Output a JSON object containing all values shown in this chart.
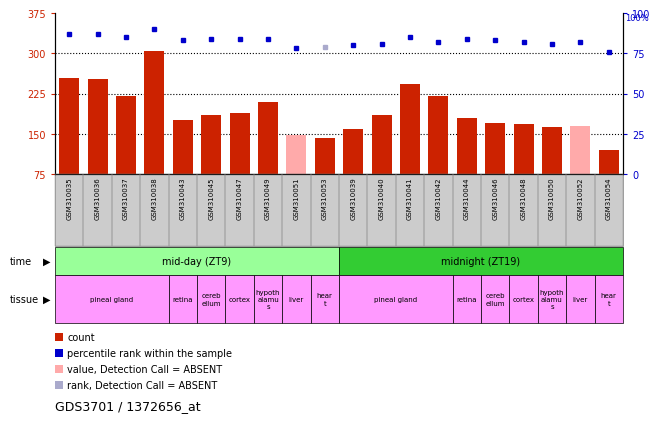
{
  "title": "GDS3701 / 1372656_at",
  "samples": [
    "GSM310035",
    "GSM310036",
    "GSM310037",
    "GSM310038",
    "GSM310043",
    "GSM310045",
    "GSM310047",
    "GSM310049",
    "GSM310051",
    "GSM310053",
    "GSM310039",
    "GSM310040",
    "GSM310041",
    "GSM310042",
    "GSM310044",
    "GSM310046",
    "GSM310048",
    "GSM310050",
    "GSM310052",
    "GSM310054"
  ],
  "count_values": [
    253,
    252,
    220,
    305,
    175,
    185,
    188,
    210,
    148,
    143,
    158,
    185,
    243,
    220,
    180,
    170,
    168,
    163,
    165,
    120
  ],
  "count_absent": [
    false,
    false,
    false,
    false,
    false,
    false,
    false,
    false,
    true,
    false,
    false,
    false,
    false,
    false,
    false,
    false,
    false,
    false,
    true,
    false
  ],
  "rank_values": [
    87,
    87,
    85,
    90,
    83,
    84,
    84,
    84,
    78,
    79,
    80,
    81,
    85,
    82,
    84,
    83,
    82,
    81,
    82,
    76
  ],
  "rank_absent": [
    false,
    false,
    false,
    false,
    false,
    false,
    false,
    false,
    false,
    true,
    false,
    false,
    false,
    false,
    false,
    false,
    false,
    false,
    false,
    false
  ],
  "ylim_left": [
    75,
    375
  ],
  "ylim_right": [
    0,
    100
  ],
  "yticks_left": [
    75,
    150,
    225,
    300,
    375
  ],
  "yticks_right": [
    0,
    25,
    50,
    75,
    100
  ],
  "color_bar_normal": "#cc2200",
  "color_bar_absent": "#ffaaaa",
  "color_rank_normal": "#0000cc",
  "color_rank_absent": "#aaaacc",
  "time_groups": [
    {
      "label": "mid-day (ZT9)",
      "start": 0,
      "end": 9,
      "color": "#99ff99"
    },
    {
      "label": "midnight (ZT19)",
      "start": 10,
      "end": 19,
      "color": "#33cc33"
    }
  ],
  "tissue_groups": [
    {
      "label": "pineal gland",
      "start": 0,
      "end": 3,
      "color": "#ff99ff"
    },
    {
      "label": "retina",
      "start": 4,
      "end": 4,
      "color": "#ff99ff"
    },
    {
      "label": "cereb\nellum",
      "start": 5,
      "end": 5,
      "color": "#ff99ff"
    },
    {
      "label": "cortex",
      "start": 6,
      "end": 6,
      "color": "#ff99ff"
    },
    {
      "label": "hypoth\nalamu\ns",
      "start": 7,
      "end": 7,
      "color": "#ff99ff"
    },
    {
      "label": "liver",
      "start": 8,
      "end": 8,
      "color": "#ff99ff"
    },
    {
      "label": "hear\nt",
      "start": 9,
      "end": 9,
      "color": "#ff99ff"
    },
    {
      "label": "pineal gland",
      "start": 10,
      "end": 13,
      "color": "#ff99ff"
    },
    {
      "label": "retina",
      "start": 14,
      "end": 14,
      "color": "#ff99ff"
    },
    {
      "label": "cereb\nellum",
      "start": 15,
      "end": 15,
      "color": "#ff99ff"
    },
    {
      "label": "cortex",
      "start": 16,
      "end": 16,
      "color": "#ff99ff"
    },
    {
      "label": "hypoth\nalamu\ns",
      "start": 17,
      "end": 17,
      "color": "#ff99ff"
    },
    {
      "label": "liver",
      "start": 18,
      "end": 18,
      "color": "#ff99ff"
    },
    {
      "label": "hear\nt",
      "start": 19,
      "end": 19,
      "color": "#ff99ff"
    }
  ],
  "legend_items": [
    {
      "label": "count",
      "color": "#cc2200"
    },
    {
      "label": "percentile rank within the sample",
      "color": "#0000cc"
    },
    {
      "label": "value, Detection Call = ABSENT",
      "color": "#ffaaaa"
    },
    {
      "label": "rank, Detection Call = ABSENT",
      "color": "#aaaacc"
    }
  ],
  "fig_width": 6.6,
  "fig_height": 4.14,
  "dpi": 100
}
